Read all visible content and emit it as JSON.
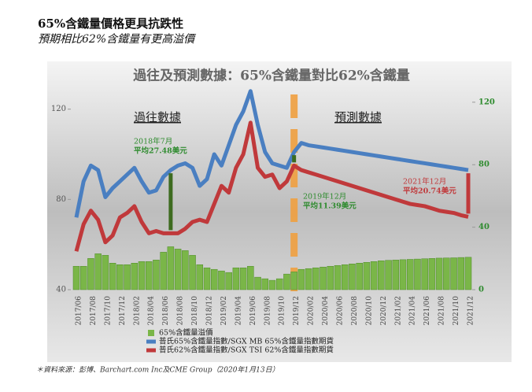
{
  "chart_data": {
    "type": "combo",
    "header_title": "65%含鐵量價格更具抗跌性",
    "header_subtitle": "預期相比62%含鐵量有更高溢價",
    "title": "過往及預測數據：65%含鐵量對比62%含鐵量",
    "period_labels": [
      "過往數據",
      "預測數據"
    ],
    "annotations": [
      "2018年7月",
      "平均27.48美元",
      "2019年12月",
      "平均11.39美元",
      "2021年12月",
      "平均20.74美元"
    ],
    "source": "＊資料來源：彭博、Barchart.com Inc及CME Group（2020年1月13日）",
    "categories": [
      "2017/06",
      null,
      "2017/08",
      null,
      "2017/10",
      null,
      "2017/12",
      null,
      "2018/02",
      null,
      "2018/04",
      null,
      "2018/06",
      null,
      "2018/08",
      null,
      "2018/10",
      null,
      "2018/12",
      null,
      "2019/02",
      null,
      "2019/04",
      null,
      "2019/06",
      null,
      "2019/08",
      null,
      "2019/10",
      null,
      "2019/12",
      null,
      "2020/02",
      null,
      "2020/04",
      null,
      "2020/06",
      null,
      "2020/08",
      null,
      "2020/10",
      null,
      "2020/12",
      null,
      "2021/02",
      null,
      "2021/04",
      null,
      "2021/06",
      null,
      "2021/08",
      null,
      "2021/10",
      null,
      "2021/12"
    ],
    "series": [
      {
        "name": "65%含鐵量溢價",
        "color": "#7ab648",
        "kind": "bar",
        "axis": "y2",
        "values": [
          15,
          15,
          20,
          23,
          22,
          17,
          16,
          16,
          17,
          18,
          18,
          19,
          24,
          27.48,
          26,
          25,
          22,
          16,
          14,
          13,
          12,
          11,
          14,
          14,
          15,
          8,
          7,
          6,
          7,
          10,
          11.39,
          13,
          13.5,
          14,
          14.5,
          15,
          15.5,
          16,
          16.5,
          17,
          17.5,
          18,
          18.5,
          18.8,
          19,
          19.2,
          19.4,
          19.6,
          19.8,
          20,
          20.2,
          20.3,
          20.4,
          20.6,
          20.74
        ]
      },
      {
        "name": "普氏65%含鐵量指數/SGX MB 65%含鐵量指數期貨",
        "color": "#4a7fc1",
        "kind": "line",
        "values": [
          72,
          88,
          95,
          93,
          81,
          85,
          88,
          91,
          94,
          88,
          83,
          84,
          90,
          93,
          95,
          96,
          94,
          86,
          89,
          100,
          95,
          104,
          113,
          119,
          128,
          113,
          101,
          96,
          95,
          94,
          101,
          105,
          104,
          103.5,
          103,
          102.5,
          102,
          101.5,
          101,
          100.5,
          100,
          99.5,
          99,
          98.5,
          98,
          97.5,
          97,
          96.5,
          96,
          95.5,
          95,
          94.5,
          94,
          93.5,
          93
        ]
      },
      {
        "name": "普氏62%含鐵量指數/SGX TSI 62%含鐵量指數期貨",
        "color": "#c0393b",
        "kind": "line",
        "values": [
          57,
          69,
          75,
          71,
          61,
          64,
          72,
          74,
          77,
          70,
          65,
          66,
          65,
          65,
          65,
          67,
          70,
          71,
          70,
          78,
          86,
          83,
          94,
          100,
          114,
          94,
          90,
          91,
          85,
          88,
          95,
          93,
          92,
          91,
          90,
          89,
          88,
          87,
          86,
          85,
          84,
          83,
          82,
          81,
          80,
          79,
          78,
          77.5,
          77,
          76,
          75,
          74.5,
          74,
          73,
          72.3
        ]
      }
    ],
    "ylim": [
      40,
      130
    ],
    "yticks": [
      40,
      80,
      120
    ],
    "y2lim": [
      0,
      130
    ],
    "y2ticks": [
      0,
      40,
      80,
      120
    ]
  }
}
